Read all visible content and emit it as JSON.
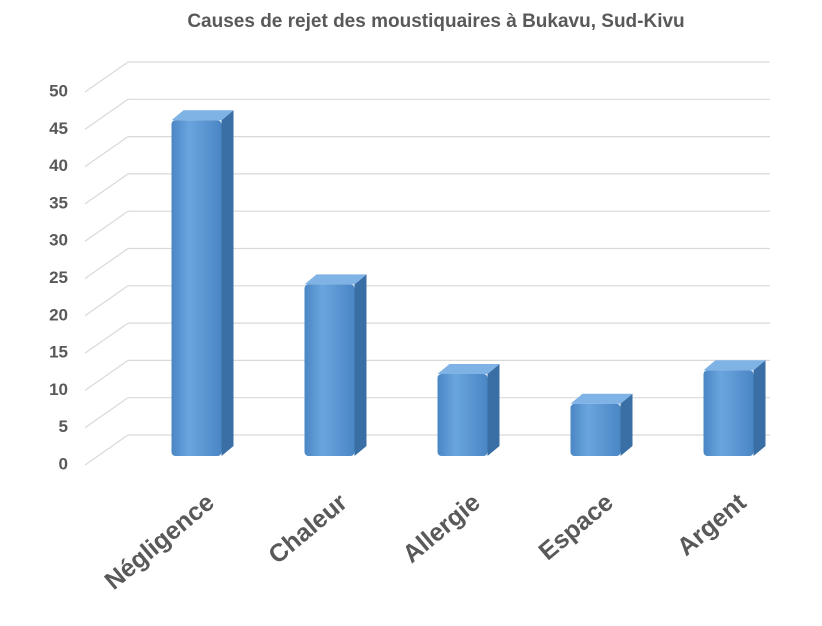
{
  "chart_data": {
    "type": "bar",
    "title": "Causes de rejet des moustiquaires à Bukavu, Sud-Kivu",
    "categories": [
      "Négligence",
      "Chaleur",
      "Allergie",
      "Espace",
      "Argent"
    ],
    "values": [
      45,
      23,
      11,
      7,
      11.5
    ],
    "color": "#5b9bd5",
    "ylim": [
      0,
      50
    ],
    "yticks": [
      0,
      5,
      10,
      15,
      20,
      25,
      30,
      35,
      40,
      45,
      50
    ],
    "grid": true
  }
}
